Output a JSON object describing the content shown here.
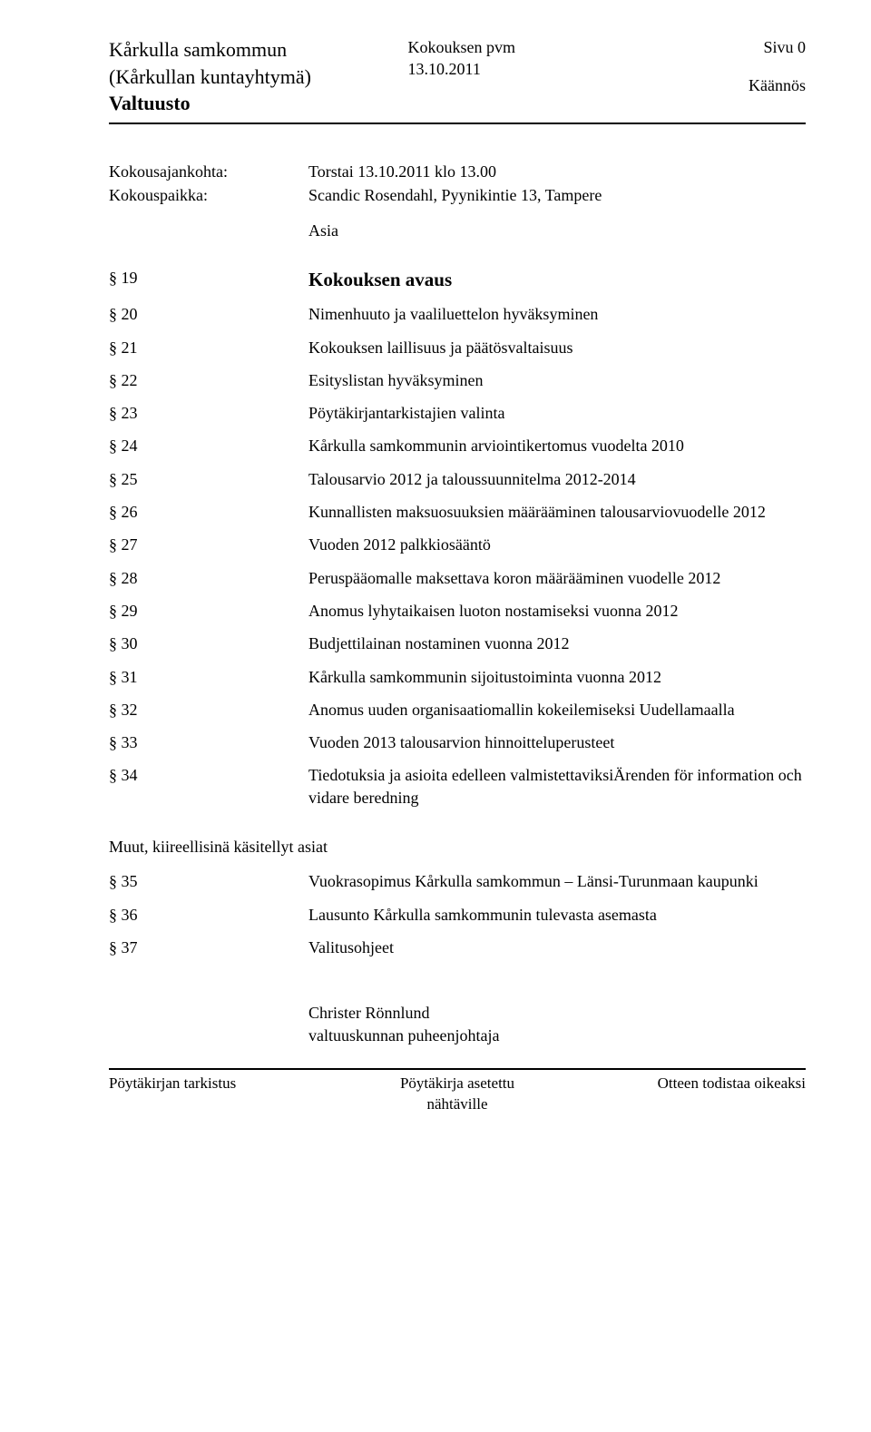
{
  "header": {
    "org_line1": "Kårkulla samkommun",
    "org_line2": "(Kårkullan kuntayhtymä)",
    "org_line3": "Valtuusto",
    "center_line1": "Kokouksen pvm",
    "center_line2": "13.10.2011",
    "right_line1": "Sivu 0",
    "right_line2": "Käännös"
  },
  "meta": {
    "time_label": "Kokousajankohta:",
    "time_value": "Torstai 13.10.2011  klo 13.00",
    "place_label": "Kokouspaikka:",
    "place_value": "Scandic Rosendahl, Pyynikintie 13, Tampere",
    "asia_label": "Asia"
  },
  "agenda": [
    {
      "num": "§ 19",
      "title": "Kokouksen avaus",
      "bold": true
    },
    {
      "num": "§ 20",
      "title": "Nimenhuuto ja vaaliluettelon hyväksyminen"
    },
    {
      "num": "§ 21",
      "title": "Kokouksen laillisuus ja päätösvaltaisuus"
    },
    {
      "num": "§ 22",
      "title": "Esityslistan hyväksyminen"
    },
    {
      "num": "§ 23",
      "title": "Pöytäkirjantarkistajien valinta"
    },
    {
      "num": "§ 24",
      "title": "Kårkulla samkommunin arviointikertomus vuodelta 2010"
    },
    {
      "num": "§ 25",
      "title": "Talousarvio 2012 ja taloussuunnitelma 2012-2014"
    },
    {
      "num": "§ 26",
      "title": "Kunnallisten maksuosuuksien määrääminen talousarviovuodelle 2012"
    },
    {
      "num": "§ 27",
      "title": "Vuoden 2012 palkkiosääntö"
    },
    {
      "num": "§ 28",
      "title": "Peruspääomalle maksettava koron määrääminen vuodelle 2012"
    },
    {
      "num": "§ 29",
      "title": "Anomus lyhytaikaisen luoton nostamiseksi vuonna 2012"
    },
    {
      "num": "§ 30",
      "title": "Budjettilainan nostaminen vuonna 2012"
    },
    {
      "num": "§ 31",
      "title": "Kårkulla samkommunin sijoitustoiminta vuonna 2012"
    },
    {
      "num": "§ 32",
      "title": "Anomus uuden organisaatiomallin kokeilemiseksi Uudellamaalla"
    },
    {
      "num": "§ 33",
      "title": "Vuoden 2013 talousarvion hinnoitteluperusteet"
    },
    {
      "num": "§ 34",
      "title": "Tiedotuksia ja asioita edelleen valmistettaviksiÄrenden för information och vidare beredning"
    }
  ],
  "section_heading": "Muut, kiireellisinä käsitellyt asiat",
  "agenda2": [
    {
      "num": "§ 35",
      "title": "Vuokrasopimus Kårkulla samkommun – Länsi-Turunmaan kaupunki"
    },
    {
      "num": "§ 36",
      "title": "Lausunto Kårkulla samkommunin tulevasta asemasta"
    },
    {
      "num": "§ 37",
      "title": "Valitusohjeet"
    }
  ],
  "signature": {
    "name": "Christer Rönnlund",
    "role": "valtuuskunnan puheenjohtaja"
  },
  "footer": {
    "left": "Pöytäkirjan tarkistus",
    "center1": "Pöytäkirja asetettu",
    "center2": "nähtäville",
    "right": "Otteen todistaa oikeaksi"
  }
}
